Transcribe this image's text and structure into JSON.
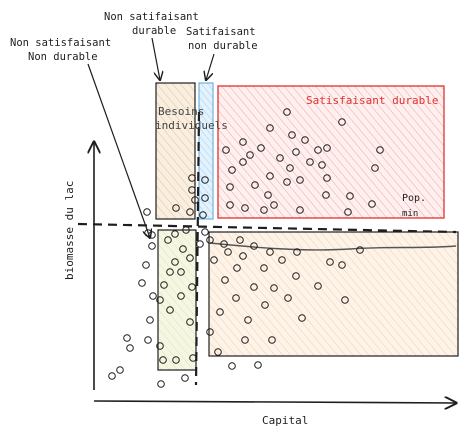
{
  "labels": {
    "nsd_1": "Non satifaisant",
    "nsd_2": "durable",
    "snd_1": "Satifaisant",
    "snd_2": "non durable",
    "nsnd_1": "Non satisfaisant",
    "nsnd_2": "Non durable",
    "besoins_1": "Besoins",
    "besoins_2": "individuels",
    "satisfaisant_durable": "Satisfaisant durable",
    "popmin_1": "Pop.",
    "popmin_2": "min",
    "xlabel": "Capital",
    "ylabel": "biomasse du lac"
  },
  "colors": {
    "ink": "#1e1e1e",
    "red": "#e03131",
    "red_fill": "#ffe3e3",
    "tan_fill": "#f6e3c9",
    "blue_fill": "#d0ebff",
    "blue_stroke": "#6fb3e0",
    "green_fill": "#eef2cf",
    "orange_fill": "#fbe7d3"
  }
}
